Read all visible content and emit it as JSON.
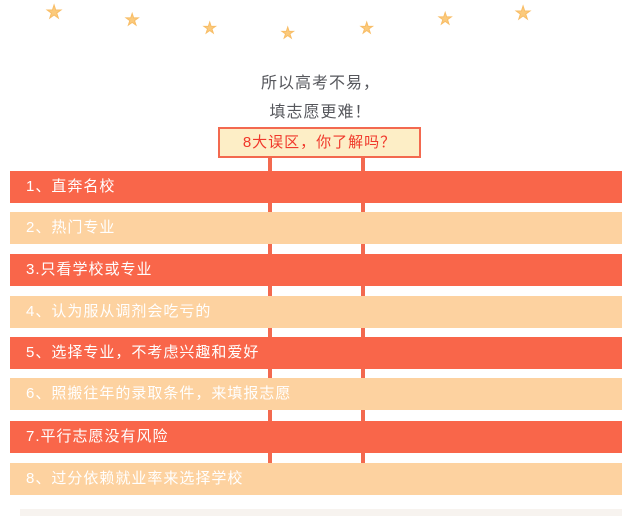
{
  "decor": {
    "star_icon_glyph": "★",
    "star_color": "#fbca7c",
    "star_count": 7
  },
  "header": {
    "line1": "所以高考不易，",
    "line2": "填志愿更难！"
  },
  "title_box": {
    "label": "8大误区，你了解吗？"
  },
  "bars": {
    "items": [
      {
        "label": "1、直奔名校",
        "variant": "red"
      },
      {
        "label": "2、热门专业",
        "variant": "light"
      },
      {
        "label": "3.只看学校或专业",
        "variant": "red"
      },
      {
        "label": "4、认为服从调剂会吃亏的",
        "variant": "light"
      },
      {
        "label": "5、选择专业，不考虑兴趣和爱好",
        "variant": "red"
      },
      {
        "label": "6、照搬往年的录取条件，来填报志愿",
        "variant": "light"
      },
      {
        "label": "7.平行志愿没有风险",
        "variant": "red"
      },
      {
        "label": "8、过分依赖就业率来选择学校",
        "variant": "light"
      }
    ]
  },
  "colors": {
    "bar_red": "#f9664a",
    "bar_light": "#fdd2a0",
    "accent_red": "#f3694f",
    "title_text_red": "#f0382b",
    "title_box_bg": "#fdeec6",
    "header_text": "#56575c",
    "star": "#fbca7c"
  }
}
